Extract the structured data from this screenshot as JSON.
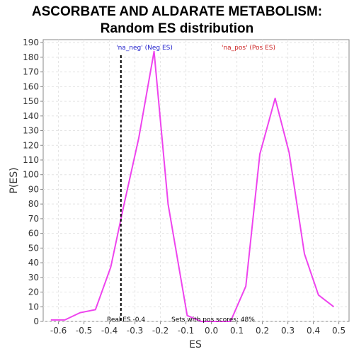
{
  "chart_data": {
    "type": "line",
    "title": "ASCORBATE AND ALDARATE METABOLISM:",
    "subtitle": "Random ES distribution",
    "xlabel": "ES",
    "ylabel": "P(ES)",
    "xlim": [
      -0.66,
      0.54
    ],
    "ylim": [
      0,
      192
    ],
    "x_ticks": [
      "-0.6",
      "-0.5",
      "-0.4",
      "-0.3",
      "-0.2",
      "-0.1",
      "0.0",
      "0.1",
      "0.2",
      "0.3",
      "0.4",
      "0.5"
    ],
    "x_tick_values": [
      -0.6,
      -0.5,
      -0.4,
      -0.3,
      -0.2,
      -0.1,
      0.0,
      0.1,
      0.2,
      0.3,
      0.4,
      0.5
    ],
    "y_ticks": [
      0,
      10,
      20,
      30,
      40,
      50,
      60,
      70,
      80,
      90,
      100,
      110,
      120,
      130,
      140,
      150,
      160,
      170,
      180,
      190
    ],
    "grid": true,
    "series": [
      {
        "color": "#ee44ee",
        "x": [
          -0.63,
          -0.575,
          -0.515,
          -0.455,
          -0.395,
          -0.345,
          -0.285,
          -0.225,
          -0.17,
          -0.095,
          -0.04,
          0.075,
          0.135,
          0.19,
          0.25,
          0.305,
          0.365,
          0.42,
          0.48
        ],
        "y": [
          1,
          1,
          6,
          8,
          37,
          78,
          125,
          184,
          80,
          4,
          0,
          0,
          24,
          114,
          152,
          115,
          46,
          18,
          10
        ]
      }
    ],
    "real_es_line": {
      "x": -0.355,
      "style": "dashed",
      "color": "#000000"
    },
    "annotations": {
      "neg_label": "'na_neg' (Neg ES)",
      "neg_color": "#2222cc",
      "pos_label": "'na_pos' (Pos ES)",
      "pos_color": "#cc2222",
      "real_es": "Real ES -0.4",
      "pos_scores": "Sets with pos scores: 48%"
    }
  }
}
